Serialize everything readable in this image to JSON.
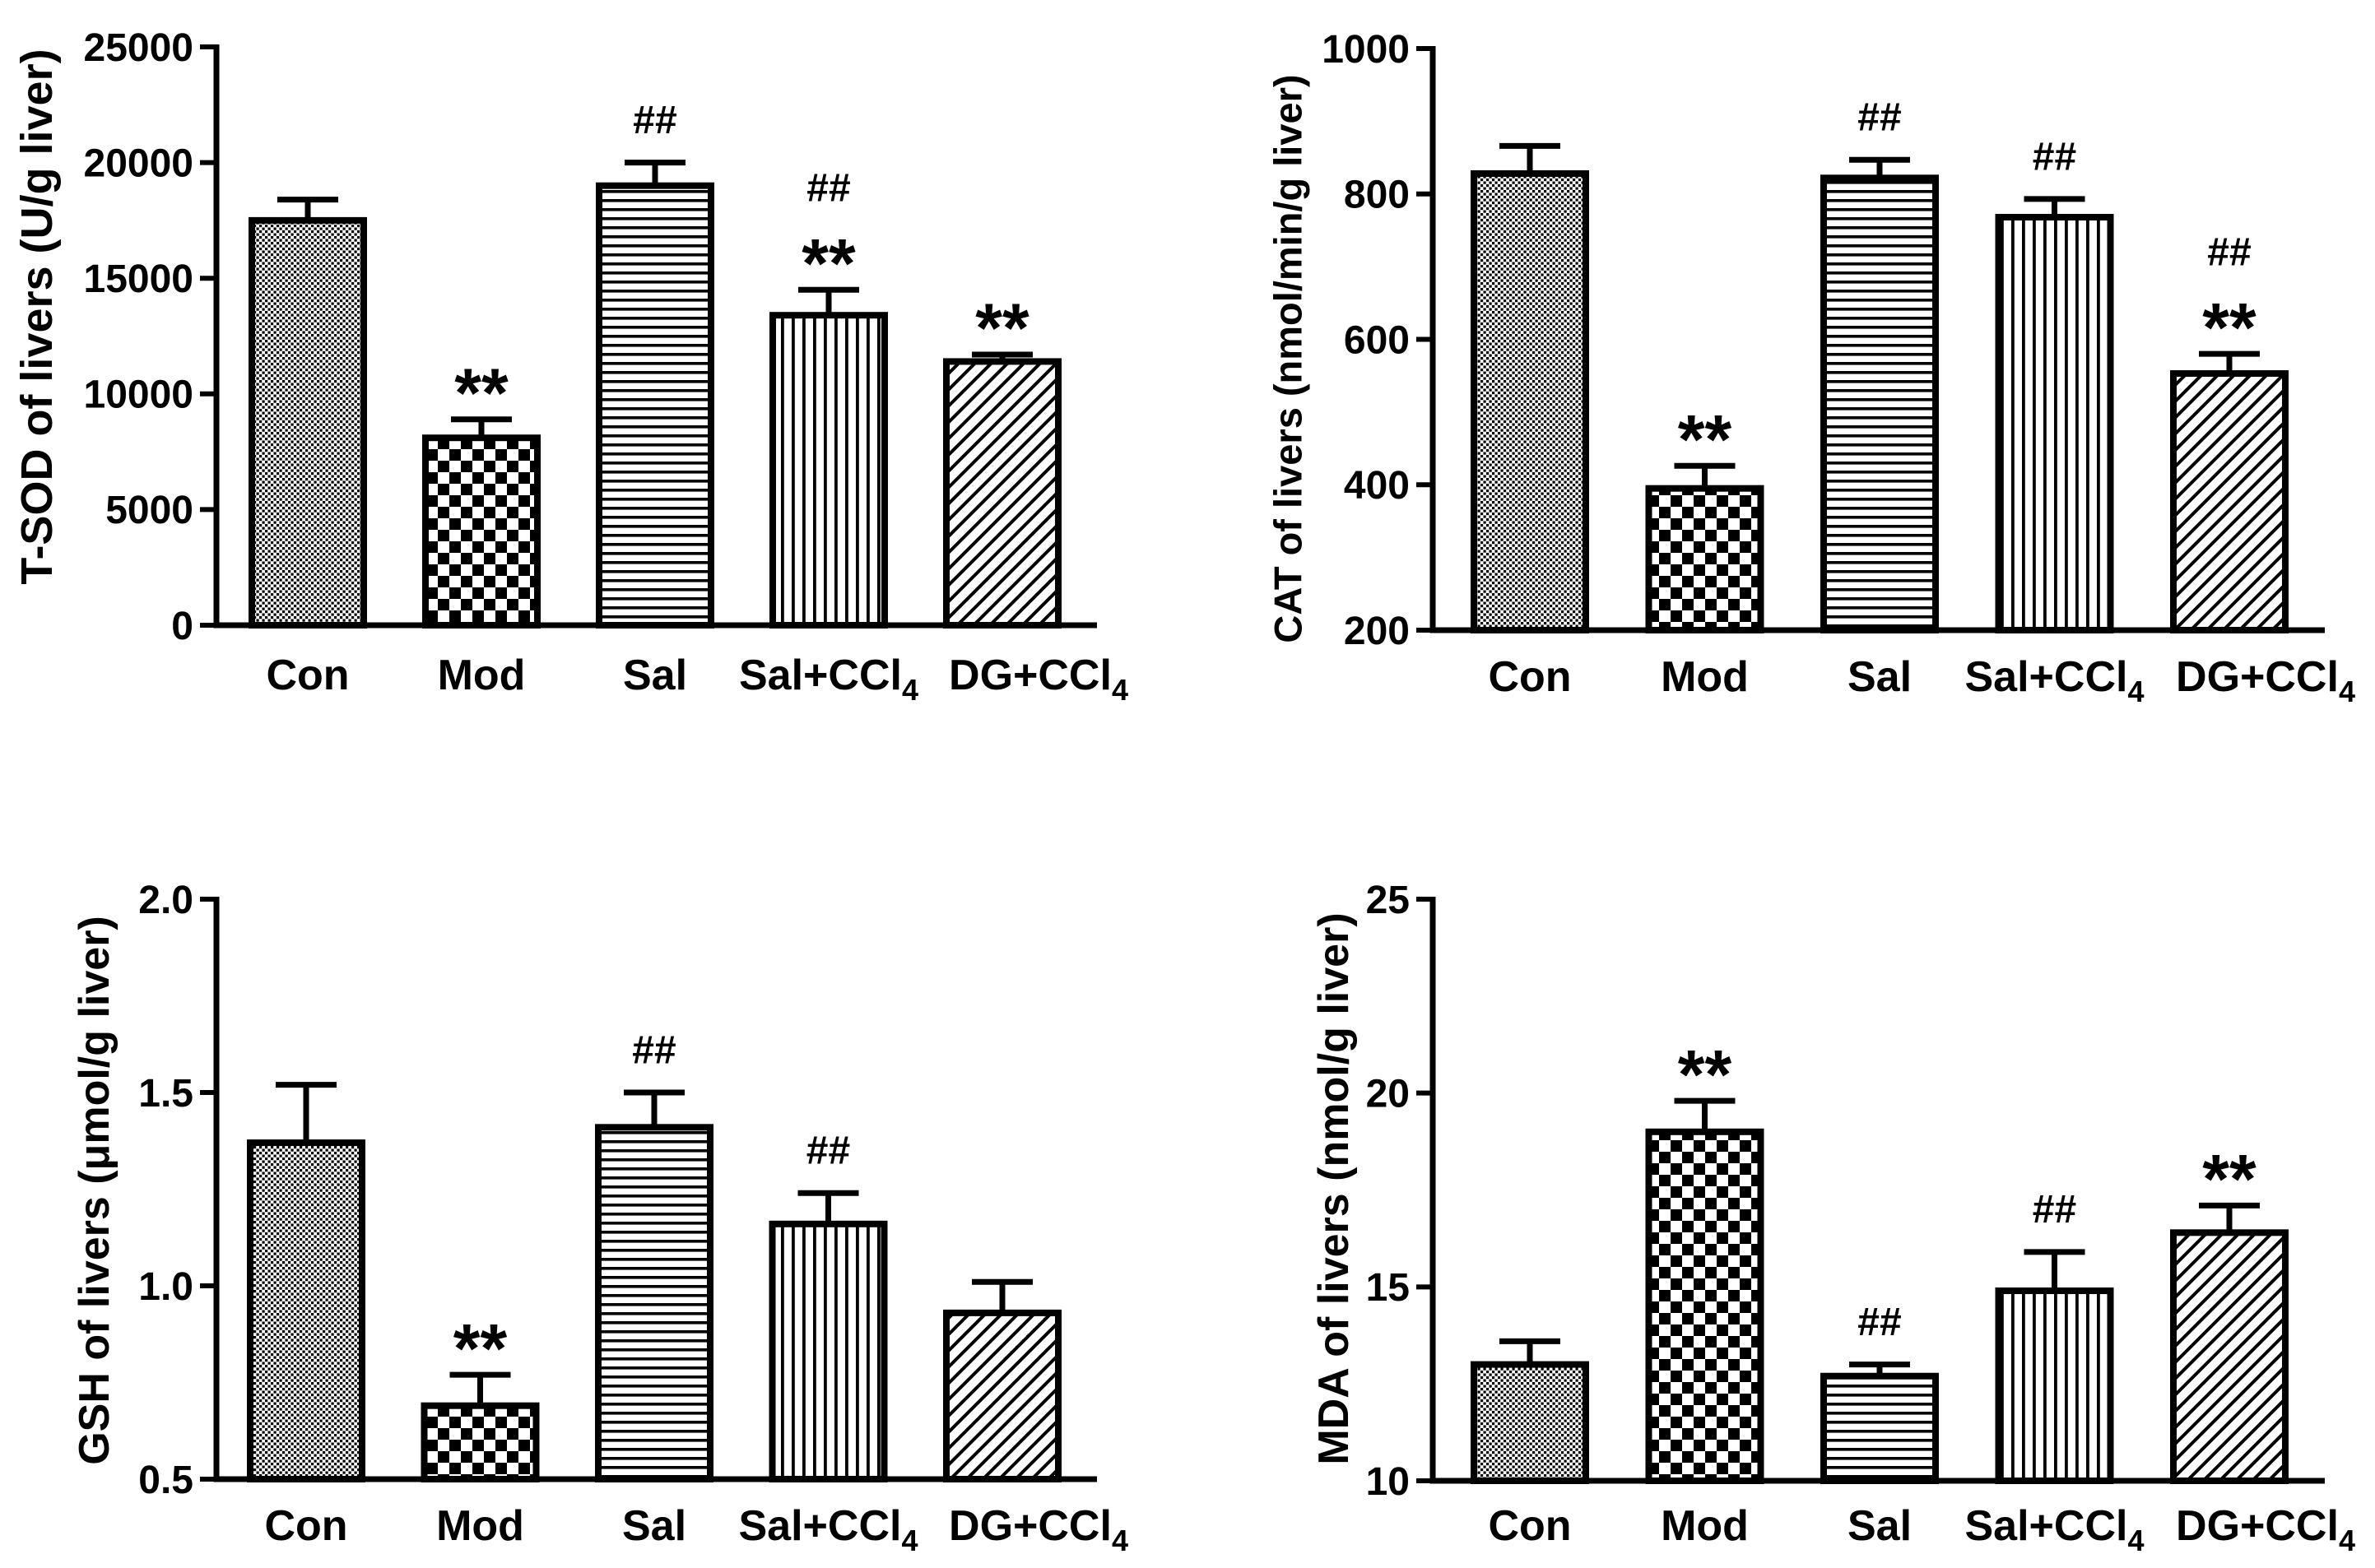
{
  "colors": {
    "ink": "#000000",
    "background": "#ffffff"
  },
  "chart_data": [
    {
      "type": "bar",
      "ylabel": "T-SOD of livers (U/g liver)",
      "categories": [
        "Con",
        "Mod",
        "Sal",
        "Sal+CCl4",
        "DG+CCl4"
      ],
      "values": [
        17500,
        8100,
        19000,
        13400,
        11400
      ],
      "errors": [
        900,
        800,
        1000,
        1100,
        300
      ],
      "ylim": [
        0,
        25000
      ],
      "yticks": [
        0,
        5000,
        10000,
        15000,
        20000,
        25000
      ],
      "ytick_labels": [
        "0",
        "5000",
        "10000",
        "15000",
        "20000",
        "25000"
      ],
      "annotations": [
        [],
        [
          "**"
        ],
        [
          "##"
        ],
        [
          "**",
          "##"
        ],
        [
          "**"
        ]
      ],
      "grid": false
    },
    {
      "type": "bar",
      "ylabel": "CAT of livers (nmol/min/g liver)",
      "categories": [
        "Con",
        "Mod",
        "Sal",
        "Sal+CCl4",
        "DG+CCl4"
      ],
      "values": [
        828,
        395,
        822,
        768,
        553
      ],
      "errors": [
        38,
        31,
        25,
        25,
        27
      ],
      "ylim": [
        200,
        1000
      ],
      "yticks": [
        200,
        400,
        600,
        800,
        1000
      ],
      "ytick_labels": [
        "200",
        "400",
        "600",
        "800",
        "1000"
      ],
      "annotations": [
        [],
        [
          "**"
        ],
        [
          "##"
        ],
        [
          "##"
        ],
        [
          "**",
          "##"
        ]
      ],
      "grid": false
    },
    {
      "type": "bar",
      "ylabel": "GSH of livers (μmol/g liver)",
      "categories": [
        "Con",
        "Mod",
        "Sal",
        "Sal+CCl4",
        "DG+CCl4"
      ],
      "values": [
        1.37,
        0.69,
        1.41,
        1.16,
        0.93
      ],
      "errors": [
        0.15,
        0.08,
        0.09,
        0.08,
        0.08
      ],
      "ylim": [
        0.5,
        2.0
      ],
      "yticks": [
        0.5,
        1.0,
        1.5,
        2.0
      ],
      "ytick_labels": [
        "0.5",
        "1.0",
        "1.5",
        "2.0"
      ],
      "annotations": [
        [],
        [
          "**"
        ],
        [
          "##"
        ],
        [
          "##"
        ],
        []
      ],
      "grid": false
    },
    {
      "type": "bar",
      "ylabel": "MDA of livers (nmol/g liver)",
      "categories": [
        "Con",
        "Mod",
        "Sal",
        "Sal+CCl4",
        "DG+CCl4"
      ],
      "values": [
        13.0,
        19.0,
        12.7,
        14.9,
        16.4
      ],
      "errors": [
        0.6,
        0.8,
        0.3,
        1.0,
        0.7
      ],
      "ylim": [
        10,
        25
      ],
      "yticks": [
        10,
        15,
        20,
        25
      ],
      "ytick_labels": [
        "10",
        "15",
        "20",
        "25"
      ],
      "annotations": [
        [],
        [
          "**"
        ],
        [
          "##"
        ],
        [
          "##"
        ],
        [
          "**"
        ]
      ],
      "grid": false
    }
  ]
}
